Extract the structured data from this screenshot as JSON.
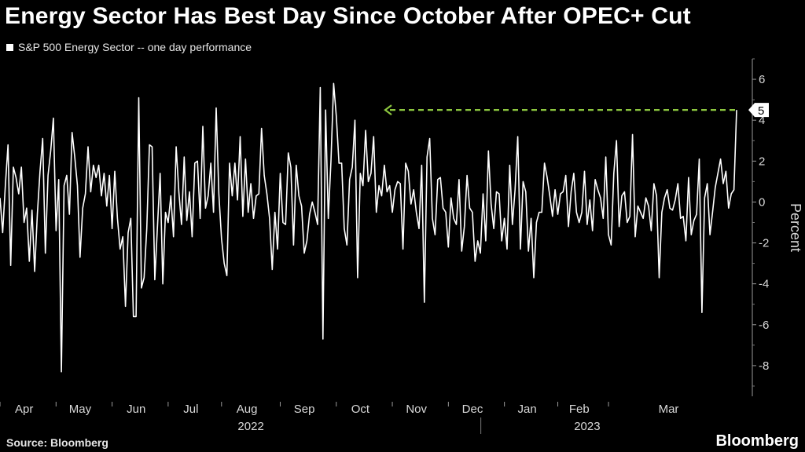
{
  "title": "Energy Sector Has Best Day Since October After OPEC+ Cut",
  "legend": {
    "label": "S&P 500 Energy Sector -- one day performance",
    "color": "#ffffff"
  },
  "source": "Source: Bloomberg",
  "brand": "Bloomberg",
  "colors": {
    "background": "#000000",
    "line": "#ffffff",
    "arrow": "#8cc63f"
  },
  "chart_data": {
    "type": "line",
    "ylabel": "Percent",
    "ylim": [
      -9.5,
      7
    ],
    "yticks": [
      6,
      4,
      2,
      0,
      -2,
      -4,
      -6,
      -8
    ],
    "grid": false,
    "months": [
      {
        "label": "Apr",
        "index": 0
      },
      {
        "label": "May",
        "index": 21
      },
      {
        "label": "Jun",
        "index": 42
      },
      {
        "label": "Jul",
        "index": 63
      },
      {
        "label": "Aug",
        "index": 83
      },
      {
        "label": "Sep",
        "index": 105
      },
      {
        "label": "Oct",
        "index": 126
      },
      {
        "label": "Nov",
        "index": 147
      },
      {
        "label": "Dec",
        "index": 168
      },
      {
        "label": "Jan",
        "index": 189
      },
      {
        "label": "Feb",
        "index": 209
      },
      {
        "label": "Mar",
        "index": 228
      }
    ],
    "years": [
      {
        "label": "2022",
        "index": 94
      },
      {
        "label": "2023",
        "index": 220
      }
    ],
    "end_label": "5",
    "series": [
      {
        "values": [
          0.2,
          -1.5,
          0.8,
          2.8,
          -3.1,
          1.7,
          1.2,
          0.4,
          1.7,
          -1.0,
          -0.3,
          -2.9,
          -0.4,
          -3.4,
          -0.6,
          1.5,
          3.1,
          -2.5,
          1.3,
          2.5,
          4.1,
          -1.4,
          1.1,
          -8.3,
          0.8,
          1.3,
          -0.6,
          3.4,
          2.2,
          0.8,
          -2.7,
          -0.3,
          0.4,
          2.7,
          0.5,
          1.8,
          1.2,
          1.8,
          0.3,
          1.4,
          -0.2,
          1.3,
          -1.3,
          1.5,
          -0.8,
          -2.3,
          -1.7,
          -5.1,
          -1.5,
          -0.8,
          -5.6,
          -5.6,
          5.1,
          -4.2,
          -3.7,
          -1.3,
          2.8,
          2.7,
          -3.8,
          -1.2,
          1.4,
          -4.0,
          -0.5,
          -1.0,
          0.3,
          -1.7,
          2.7,
          0.5,
          -1.1,
          2.2,
          -0.9,
          0.5,
          -1.7,
          1.9,
          2.0,
          -0.8,
          3.7,
          -0.3,
          0.3,
          1.9,
          -0.5,
          4.6,
          0.4,
          -1.8,
          -3.0,
          -3.6,
          1.9,
          0.3,
          1.9,
          0.1,
          3.2,
          -0.7,
          2.1,
          -0.5,
          0.9,
          -0.8,
          0.3,
          0.4,
          3.6,
          1.3,
          0.4,
          -0.8,
          -3.3,
          -0.5,
          -2.3,
          1.4,
          -1.0,
          -1.1,
          2.4,
          1.7,
          -2.1,
          1.8,
          0.3,
          -0.2,
          -2.5,
          -1.9,
          -0.6,
          0.0,
          -0.5,
          -1.1,
          5.6,
          -6.7,
          4.5,
          -0.8,
          2.0,
          5.8,
          4.2,
          1.9,
          1.9,
          -1.3,
          -2.1,
          1.1,
          1.7,
          4.0,
          -3.7,
          1.4,
          0.8,
          3.5,
          1.0,
          1.4,
          3.2,
          -0.5,
          0.8,
          0.3,
          1.8,
          0.5,
          0.8,
          -0.5,
          0.6,
          1.0,
          0.9,
          -2.3,
          1.9,
          1.5,
          -0.1,
          0.6,
          -0.5,
          -1.3,
          1.8,
          -4.9,
          2.2,
          3.1,
          -0.8,
          -1.6,
          1.1,
          1.2,
          -0.3,
          -0.5,
          -2.2,
          0.2,
          -0.8,
          -1.1,
          1.1,
          -2.4,
          -1.2,
          1.3,
          -0.3,
          -0.5,
          -2.9,
          -1.9,
          -2.5,
          0.4,
          -1.9,
          2.5,
          -0.1,
          -1.3,
          0.5,
          0.4,
          -1.9,
          -0.8,
          -2.3,
          1.8,
          -1.1,
          0.6,
          3.2,
          -2.3,
          1.0,
          0.5,
          -2.4,
          -0.8,
          -3.7,
          -1.0,
          -0.5,
          -0.5,
          1.9,
          1.2,
          0.3,
          -0.7,
          0.6,
          -0.6,
          0.4,
          0.5,
          1.3,
          -1.2,
          0.5,
          1.4,
          -0.5,
          -1.0,
          -0.5,
          1.5,
          -1.1,
          0.1,
          -1.4,
          1.1,
          0.6,
          0.2,
          -0.8,
          2.2,
          -1.6,
          -2.1,
          1.4,
          3.0,
          -1.2,
          0.3,
          0.5,
          -1.0,
          -0.7,
          3.3,
          -1.7,
          -0.2,
          -0.5,
          -0.8,
          0.2,
          -0.2,
          -1.4,
          0.9,
          0.3,
          -3.7,
          -0.5,
          0.2,
          0.6,
          -0.3,
          -0.4,
          0.1,
          0.9,
          -0.8,
          -0.7,
          -1.9,
          1.2,
          -1.6,
          -0.9,
          -0.6,
          2.1,
          -5.4,
          0.2,
          0.9,
          -1.6,
          -0.5,
          0.7,
          1.4,
          2.1,
          0.9,
          1.5,
          -0.3,
          0.4,
          0.6,
          4.5
        ]
      }
    ]
  }
}
